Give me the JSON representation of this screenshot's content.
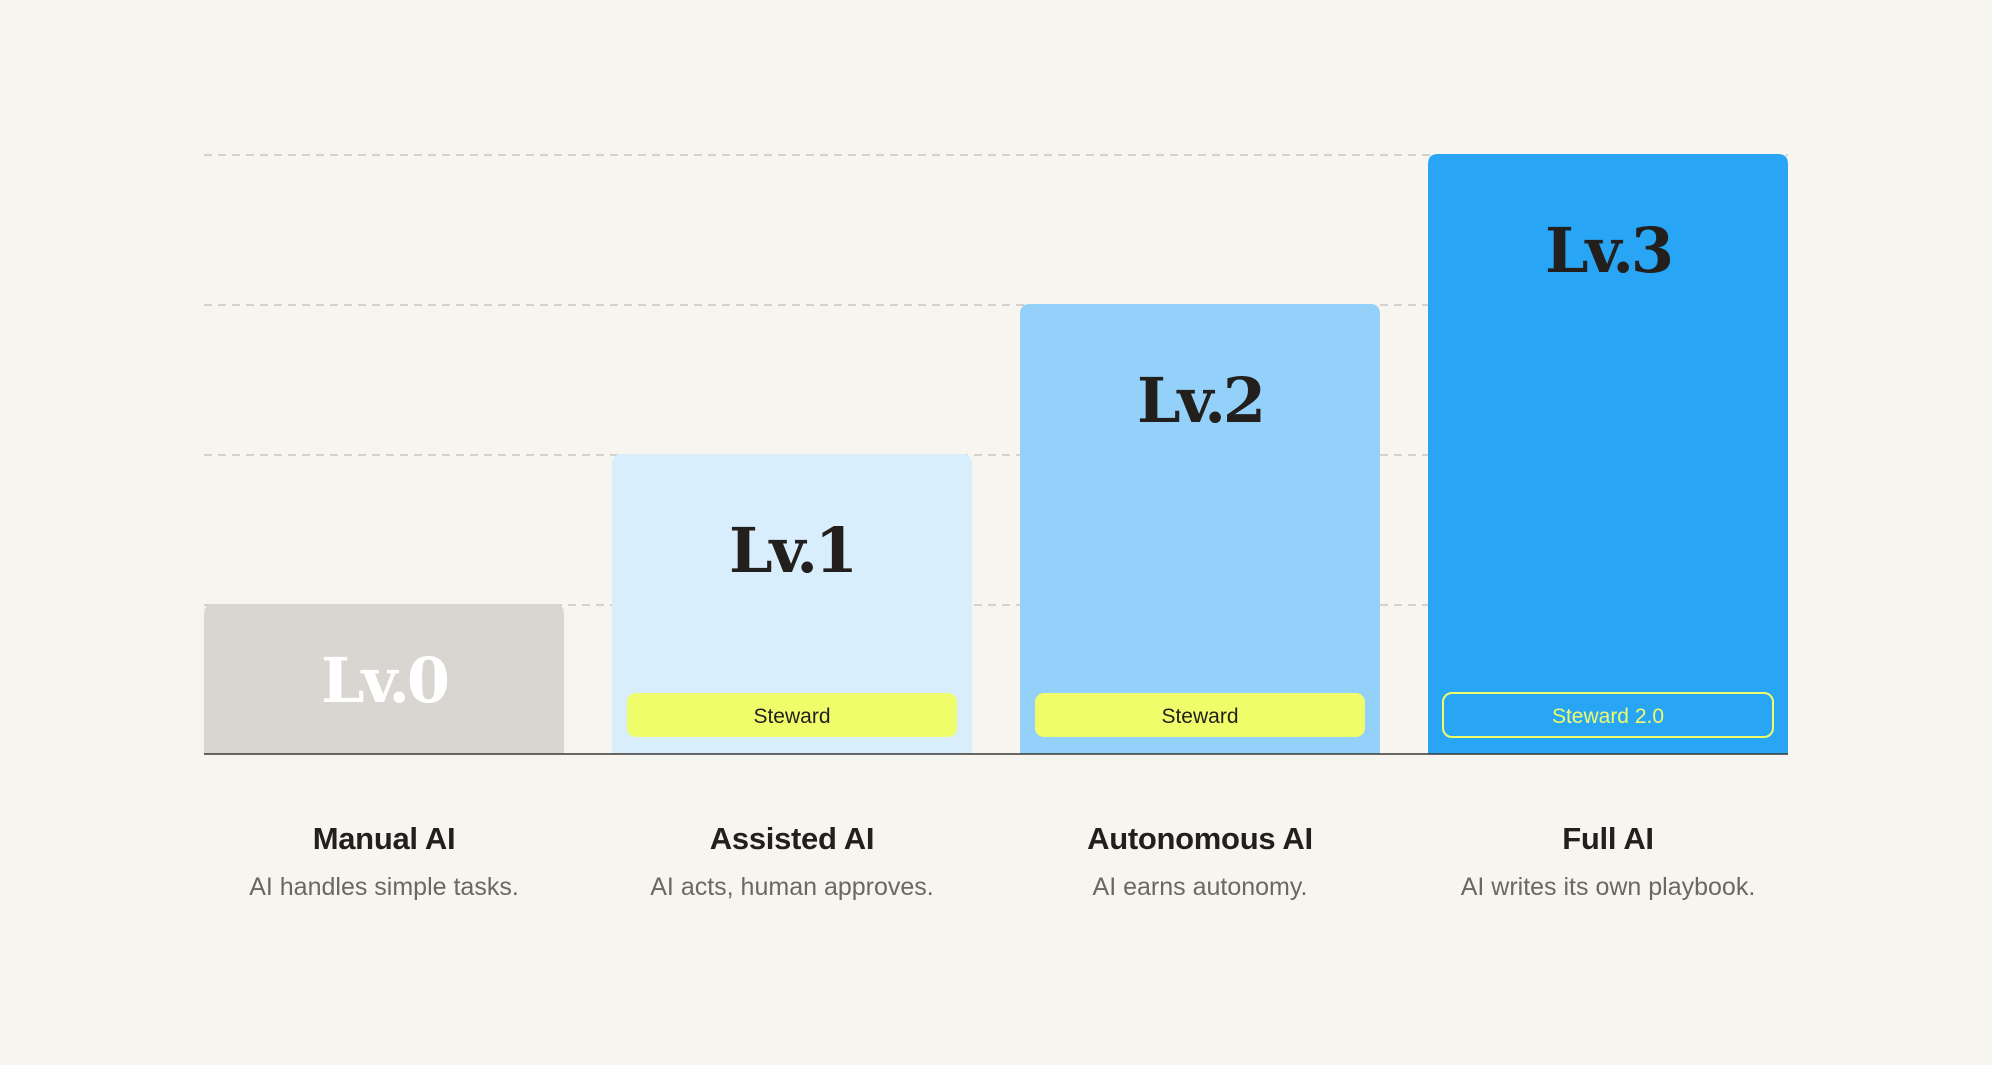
{
  "chart_data": {
    "type": "bar",
    "categories": [
      "Lv.0",
      "Lv.1",
      "Lv.2",
      "Lv.3"
    ],
    "values": [
      1,
      2,
      3,
      4
    ],
    "ylim": [
      0,
      4
    ],
    "grid": true,
    "bars": [
      {
        "level": "Lv.0",
        "value": 1,
        "color": "#d9d6d1",
        "level_text_color": "#ffffff",
        "badge": null
      },
      {
        "level": "Lv.1",
        "value": 2,
        "color": "#d9eefd",
        "level_text_color": "#221f1c",
        "badge": {
          "label": "Steward",
          "style": "filled",
          "fill": "#f0fd6a",
          "text_color": "#221f1c"
        }
      },
      {
        "level": "Lv.2",
        "value": 3,
        "color": "#93d1fa",
        "level_text_color": "#221f1c",
        "badge": {
          "label": "Steward",
          "style": "filled",
          "fill": "#f0fd6a",
          "text_color": "#221f1c"
        }
      },
      {
        "level": "Lv.3",
        "value": 4,
        "color": "#29a5f6",
        "level_text_color": "#221f1c",
        "badge": {
          "label": "Steward 2.0",
          "style": "outline",
          "stroke": "#f0fd6a",
          "text_color": "#f0fd6a"
        }
      }
    ]
  },
  "captions": [
    {
      "title": "Manual AI",
      "description": "AI handles simple tasks."
    },
    {
      "title": "Assisted AI",
      "description": "AI acts, human approves."
    },
    {
      "title": "Autonomous AI",
      "description": "AI earns autonomy."
    },
    {
      "title": "Full AI",
      "description": "AI writes its own playbook."
    }
  ],
  "colors": {
    "background": "#f6f5f0",
    "gridline": "#c9c7c2",
    "baseline": "#3a3835"
  }
}
